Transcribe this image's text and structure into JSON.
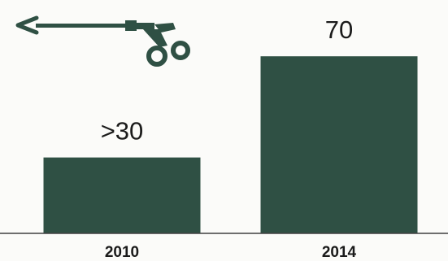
{
  "chart_data": {
    "type": "bar",
    "categories": [
      "2010",
      "2014"
    ],
    "values": [
      30,
      70
    ],
    "value_labels": [
      ">30",
      "70"
    ],
    "title": "",
    "xlabel": "",
    "ylabel": "",
    "ylim": [
      0,
      90
    ],
    "grid": false,
    "legend": "none"
  },
  "colors": {
    "bar": "#2f5044",
    "text": "#1b1b1b",
    "axis": "#404040",
    "icon": "#2f5044",
    "background": "#fbfbf9"
  },
  "icon": {
    "name": "laparoscopic-scissors-icon"
  }
}
